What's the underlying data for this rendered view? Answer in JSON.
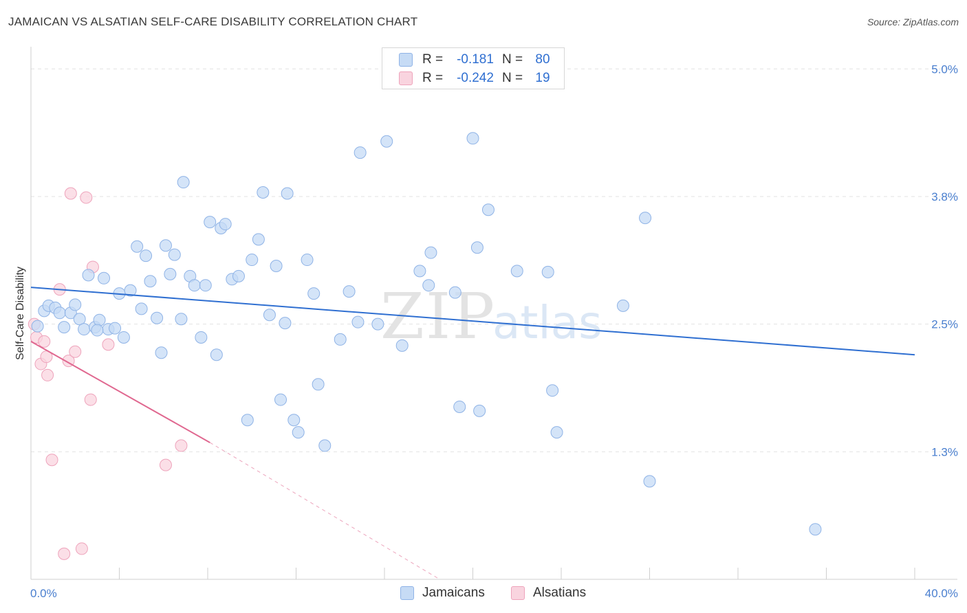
{
  "title": "JAMAICAN VS ALSATIAN SELF-CARE DISABILITY CORRELATION CHART",
  "source": "Source: ZipAtlas.com",
  "watermark": {
    "zip": "ZIP",
    "atlas": "atlas"
  },
  "colors": {
    "blue_fill": "#c6dbf5",
    "blue_stroke": "#8fb3e6",
    "blue_line": "#2f6fd1",
    "pink_fill": "#f9d4df",
    "pink_stroke": "#eea3bb",
    "pink_line": "#e06890",
    "accent_text": "#4a7fcf"
  },
  "legend": {
    "rows": [
      {
        "r_label": "R =",
        "r_value": "-0.181",
        "n_label": "N =",
        "n_value": "80"
      },
      {
        "r_label": "R =",
        "r_value": "-0.242",
        "n_label": "N =",
        "n_value": "19"
      }
    ]
  },
  "bottom_legend": {
    "items": [
      "Jamaicans",
      "Alsatians"
    ]
  },
  "chart_data": {
    "type": "scatter",
    "title": "JAMAICAN VS ALSATIAN SELF-CARE DISABILITY CORRELATION CHART",
    "xlabel": "",
    "ylabel": "Self-Care Disability",
    "xlim": [
      0,
      40
    ],
    "ylim": [
      0,
      5.15
    ],
    "x_tick_labels": [
      "0.0%",
      "40.0%"
    ],
    "y_ticks": [
      {
        "value": 1.25,
        "label": "1.3%"
      },
      {
        "value": 2.5,
        "label": "2.5%"
      },
      {
        "value": 3.75,
        "label": "3.8%"
      },
      {
        "value": 5.0,
        "label": "5.0%"
      }
    ],
    "series": [
      {
        "name": "Jamaicans",
        "color": "blue",
        "trend": {
          "x": [
            0,
            40
          ],
          "y": [
            2.86,
            2.2
          ],
          "dashed_from": null
        },
        "points": [
          [
            0.3,
            2.48
          ],
          [
            0.6,
            2.63
          ],
          [
            0.8,
            2.68
          ],
          [
            1.1,
            2.66
          ],
          [
            1.3,
            2.61
          ],
          [
            1.5,
            2.47
          ],
          [
            1.8,
            2.61
          ],
          [
            2.0,
            2.69
          ],
          [
            2.2,
            2.55
          ],
          [
            2.4,
            2.45
          ],
          [
            2.6,
            2.98
          ],
          [
            2.9,
            2.47
          ],
          [
            3.1,
            2.54
          ],
          [
            3.3,
            2.95
          ],
          [
            3.5,
            2.45
          ],
          [
            3.8,
            2.46
          ],
          [
            4.0,
            2.8
          ],
          [
            4.2,
            2.37
          ],
          [
            4.5,
            2.83
          ],
          [
            4.8,
            3.26
          ],
          [
            5.0,
            2.65
          ],
          [
            5.2,
            3.17
          ],
          [
            5.4,
            2.92
          ],
          [
            5.7,
            2.56
          ],
          [
            5.9,
            2.22
          ],
          [
            6.1,
            3.27
          ],
          [
            6.3,
            2.99
          ],
          [
            6.5,
            3.18
          ],
          [
            6.8,
            2.55
          ],
          [
            6.9,
            3.89
          ],
          [
            7.2,
            2.97
          ],
          [
            7.4,
            2.88
          ],
          [
            7.7,
            2.37
          ],
          [
            7.9,
            2.88
          ],
          [
            8.1,
            3.5
          ],
          [
            8.4,
            2.2
          ],
          [
            8.6,
            3.44
          ],
          [
            8.8,
            3.48
          ],
          [
            9.1,
            2.94
          ],
          [
            9.4,
            2.97
          ],
          [
            9.8,
            1.56
          ],
          [
            10.0,
            3.13
          ],
          [
            10.3,
            3.33
          ],
          [
            10.5,
            3.79
          ],
          [
            10.8,
            2.59
          ],
          [
            11.1,
            3.07
          ],
          [
            11.3,
            1.76
          ],
          [
            11.5,
            2.51
          ],
          [
            11.6,
            3.78
          ],
          [
            11.9,
            1.56
          ],
          [
            12.1,
            1.44
          ],
          [
            12.5,
            3.13
          ],
          [
            12.8,
            2.8
          ],
          [
            13.0,
            1.91
          ],
          [
            13.3,
            1.31
          ],
          [
            14.0,
            2.35
          ],
          [
            14.4,
            2.82
          ],
          [
            14.8,
            2.52
          ],
          [
            14.9,
            4.18
          ],
          [
            15.7,
            2.5
          ],
          [
            16.1,
            4.29
          ],
          [
            16.8,
            2.29
          ],
          [
            17.6,
            3.02
          ],
          [
            18.0,
            2.88
          ],
          [
            18.1,
            3.2
          ],
          [
            19.2,
            2.81
          ],
          [
            19.4,
            1.69
          ],
          [
            20.0,
            4.32
          ],
          [
            20.2,
            3.25
          ],
          [
            20.3,
            1.65
          ],
          [
            20.7,
            3.62
          ],
          [
            22.0,
            3.02
          ],
          [
            23.4,
            3.01
          ],
          [
            23.6,
            1.85
          ],
          [
            23.8,
            1.44
          ],
          [
            26.8,
            2.68
          ],
          [
            27.8,
            3.54
          ],
          [
            28.0,
            0.96
          ],
          [
            35.5,
            0.49
          ],
          [
            3.0,
            2.44
          ]
        ]
      },
      {
        "name": "Alsatians",
        "color": "pink",
        "trend": {
          "x": [
            0,
            8.1
          ],
          "y": [
            2.33,
            1.34
          ],
          "dashed_to": {
            "x": 18.5,
            "y": 0
          }
        },
        "points": [
          [
            0.15,
            2.5
          ],
          [
            0.25,
            2.37
          ],
          [
            0.45,
            2.11
          ],
          [
            0.6,
            2.33
          ],
          [
            0.7,
            2.18
          ],
          [
            0.75,
            2.0
          ],
          [
            0.95,
            1.17
          ],
          [
            1.3,
            2.84
          ],
          [
            1.7,
            2.14
          ],
          [
            1.8,
            3.78
          ],
          [
            2.0,
            2.23
          ],
          [
            2.3,
            0.3
          ],
          [
            2.5,
            3.74
          ],
          [
            2.7,
            1.76
          ],
          [
            2.8,
            3.06
          ],
          [
            3.5,
            2.3
          ],
          [
            6.1,
            1.12
          ],
          [
            6.8,
            1.31
          ],
          [
            1.5,
            0.25
          ]
        ]
      }
    ]
  }
}
